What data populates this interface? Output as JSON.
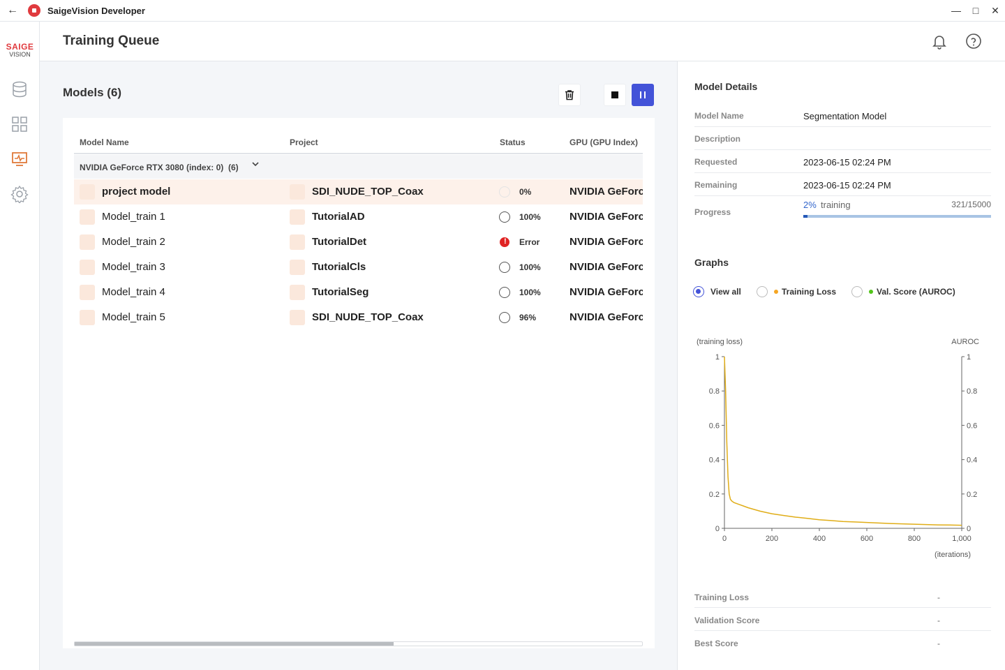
{
  "window": {
    "title": "SaigeVision Developer"
  },
  "logo": {
    "line1": "SAIGE",
    "line2": "VISION"
  },
  "header": {
    "title": "Training Queue"
  },
  "models": {
    "title": "Models (6)",
    "columns": [
      "Model Name",
      "Project",
      "Status",
      "GPU (GPU Index)"
    ],
    "group": {
      "label": "NVIDIA GeForce RTX 3080 (index: 0)",
      "count": "(6)"
    },
    "rows": [
      {
        "name": "project model",
        "project": "SDI_NUDE_TOP_Coax",
        "status": "0%",
        "gpu": "NVIDIA GeForce"
      },
      {
        "name": "Model_train 1",
        "project": "TutorialAD",
        "status": "100%",
        "gpu": "NVIDIA GeForce"
      },
      {
        "name": "Model_train 2",
        "project": "TutorialDet",
        "status": "Error",
        "gpu": "NVIDIA GeForce"
      },
      {
        "name": "Model_train 3",
        "project": "TutorialCls",
        "status": "100%",
        "gpu": "NVIDIA GeForce"
      },
      {
        "name": "Model_train 4",
        "project": "TutorialSeg",
        "status": "100%",
        "gpu": "NVIDIA GeForce"
      },
      {
        "name": "Model_train 5",
        "project": "SDI_NUDE_TOP_Coax",
        "status": "96%",
        "gpu": "NVIDIA GeForce"
      }
    ]
  },
  "details": {
    "title": "Model Details",
    "fields": [
      {
        "key": "Model Name",
        "value": "Segmentation Model"
      },
      {
        "key": "Description",
        "value": ""
      },
      {
        "key": "Requested",
        "value": "2023-06-15 02:24 PM"
      },
      {
        "key": "Remaining",
        "value": "2023-06-15 02:24 PM"
      }
    ],
    "progress": {
      "label": "Progress",
      "percent_text": "2%",
      "state": "training",
      "count": "321/15000",
      "fraction": 0.0214
    }
  },
  "graphs": {
    "title": "Graphs",
    "options": [
      {
        "label": "View all",
        "selected": true
      },
      {
        "label": "Training Loss",
        "selected": false,
        "dot": "#f5a623"
      },
      {
        "label": "Val. Score (AUROC)",
        "selected": false,
        "dot": "#52c41a"
      }
    ]
  },
  "metrics": [
    {
      "key": "Training Loss",
      "value": "-"
    },
    {
      "key": "Validation Score",
      "value": "-"
    },
    {
      "key": "Best Score",
      "value": "-"
    }
  ],
  "colors": {
    "accent": "#4353d8",
    "brand": "#e03a3e",
    "loss_line": "#e0ad17",
    "selected_row": "#fdf1ea"
  },
  "chart_data": {
    "type": "line",
    "xlabel": "(iterations)",
    "ylabel": "(training loss)",
    "y2label": "AUROC",
    "xlim": [
      0,
      1000
    ],
    "ylim": [
      0,
      1
    ],
    "y2lim": [
      0,
      1
    ],
    "xticks": [
      "0",
      "200",
      "400",
      "600",
      "800",
      "1,000"
    ],
    "yticks": [
      "0",
      "0.2",
      "0.4",
      "0.6",
      "0.8",
      "1"
    ],
    "y2ticks": [
      "0",
      "0.2",
      "0.4",
      "0.6",
      "0.8",
      "1"
    ],
    "grid": false,
    "series": [
      {
        "x": [
          0,
          5,
          10,
          15,
          20,
          25,
          30,
          40,
          60,
          80,
          100,
          150,
          200,
          250,
          300,
          350,
          400,
          450,
          500,
          550,
          600,
          650,
          700,
          750,
          800,
          850,
          900,
          950,
          1000
        ],
        "values": [
          1.0,
          0.8,
          0.5,
          0.3,
          0.2,
          0.17,
          0.16,
          0.15,
          0.14,
          0.13,
          0.12,
          0.1,
          0.085,
          0.075,
          0.065,
          0.058,
          0.05,
          0.045,
          0.04,
          0.037,
          0.034,
          0.031,
          0.028,
          0.026,
          0.024,
          0.022,
          0.02,
          0.019,
          0.018
        ]
      }
    ]
  }
}
